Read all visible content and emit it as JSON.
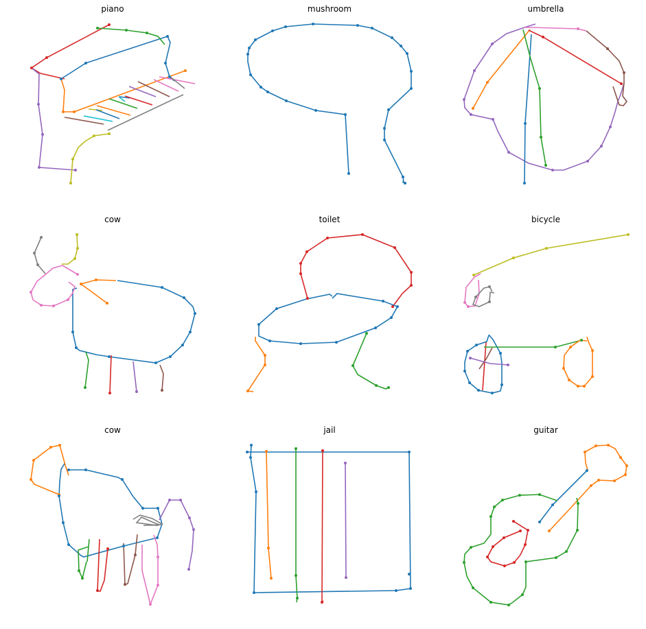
{
  "figure": {
    "panels": [
      {
        "title": "piano"
      },
      {
        "title": "mushroom"
      },
      {
        "title": "umbrella"
      },
      {
        "title": "cow"
      },
      {
        "title": "toilet"
      },
      {
        "title": "bicycle"
      },
      {
        "title": "cow"
      },
      {
        "title": "jail"
      },
      {
        "title": "guitar"
      }
    ],
    "stroke_colors": [
      "#1f77b4",
      "#ff7f0e",
      "#2ca02c",
      "#d62728",
      "#9467bd",
      "#8c564b",
      "#e377c2",
      "#7f7f7f",
      "#bcbd22",
      "#17becf"
    ]
  }
}
